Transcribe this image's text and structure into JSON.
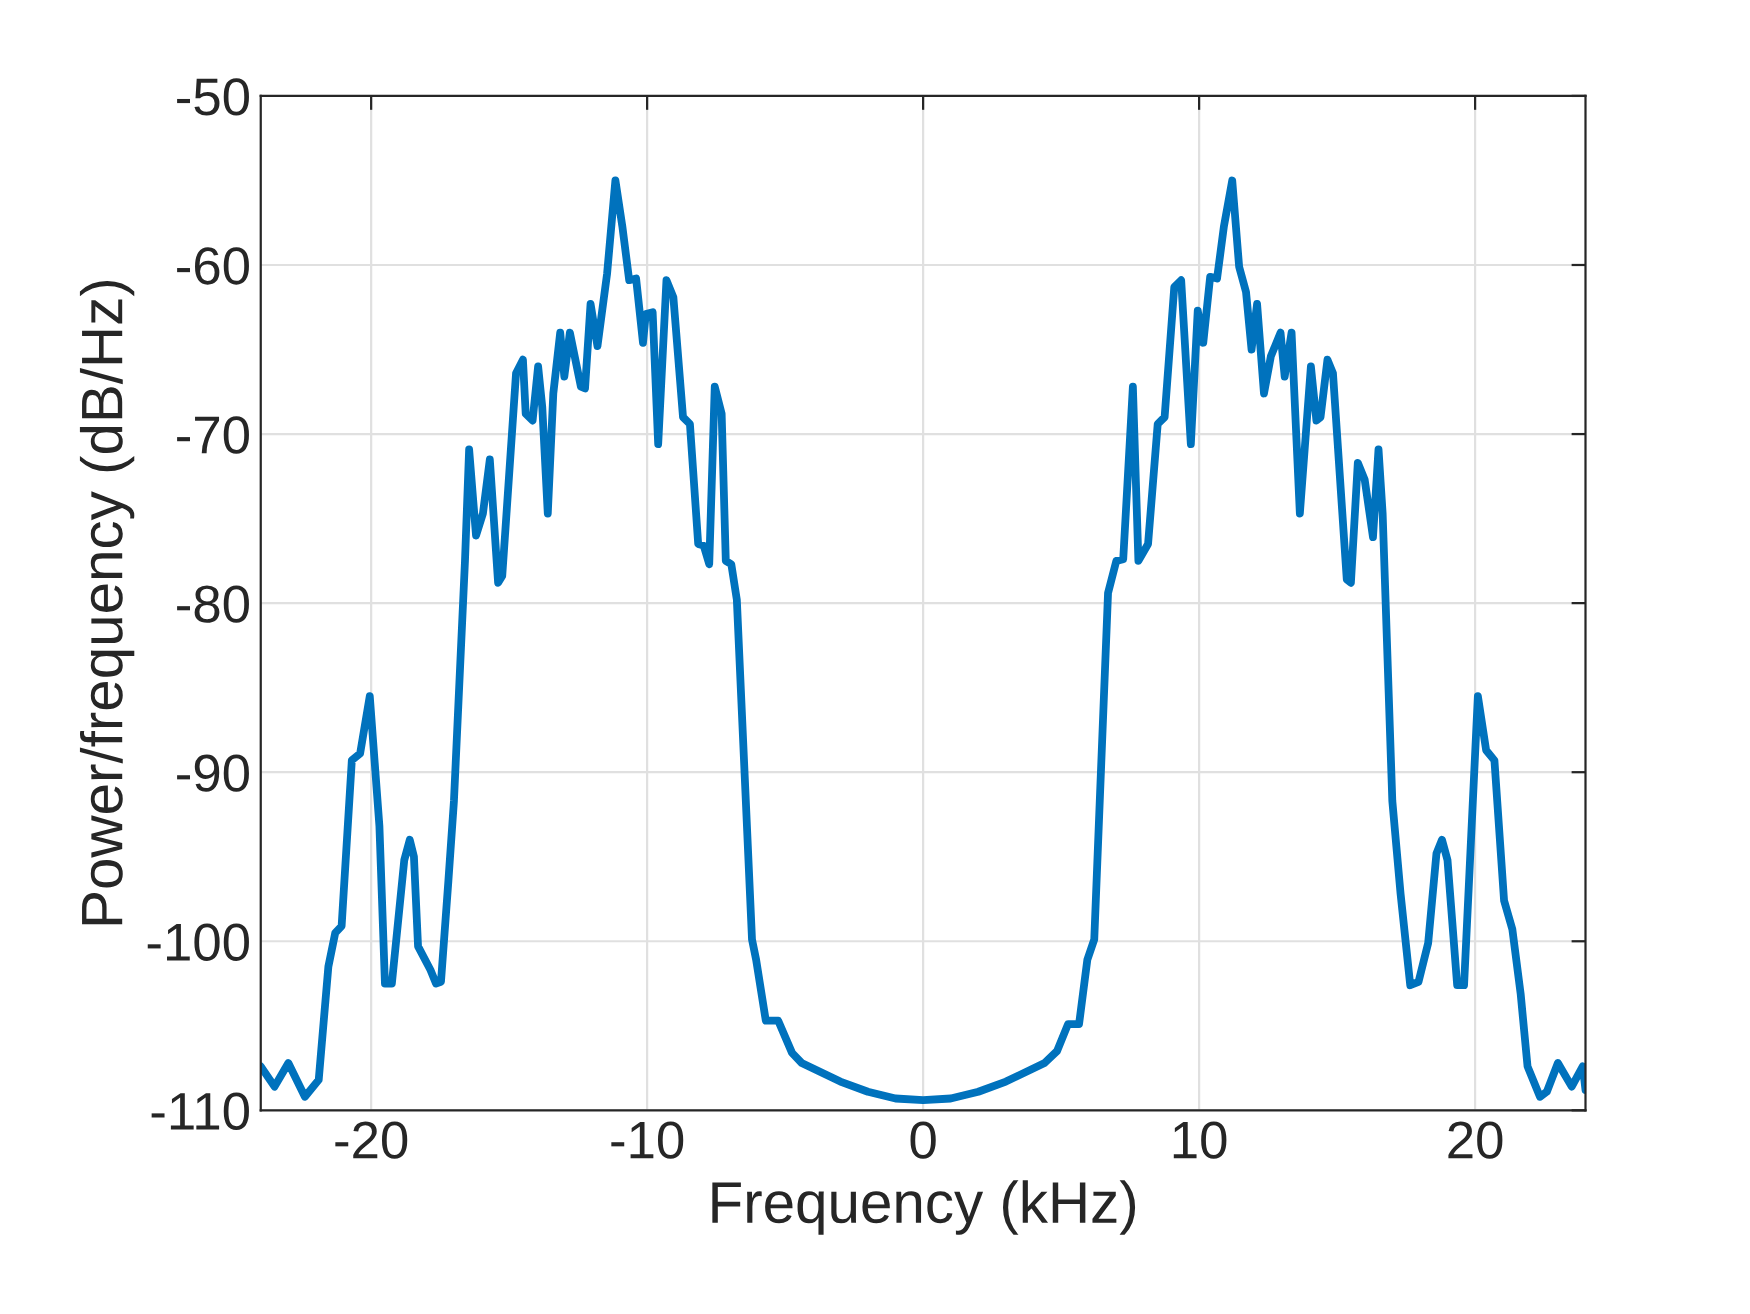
{
  "chart_data": {
    "type": "line",
    "xlabel": "Frequency (kHz)",
    "ylabel": "Power/frequency (dB/Hz)",
    "color": "#0072bd",
    "grid": true,
    "xlim": [
      -24,
      24
    ],
    "ylim": [
      -110,
      -50
    ],
    "xticks": [
      -20,
      -10,
      0,
      10,
      20
    ],
    "yticks": [
      -110,
      -100,
      -90,
      -80,
      -70,
      -60,
      -50
    ],
    "x": [
      -24,
      -23.5,
      -23.0,
      -22.4,
      -21.9,
      -21.55,
      -21.3,
      -21.07,
      -20.7,
      -20.4,
      -20.05,
      -19.7,
      -19.5,
      -19.25,
      -18.8,
      -18.6,
      -18.45,
      -18.3,
      -17.85,
      -17.65,
      -17.47,
      -17.2,
      -17.0,
      -16.6,
      -16.45,
      -16.2,
      -15.95,
      -15.7,
      -15.4,
      -15.25,
      -14.75,
      -14.5,
      -14.4,
      -14.15,
      -13.95,
      -13.8,
      -13.6,
      -13.4,
      -13.15,
      -13.0,
      -12.8,
      -12.4,
      -12.25,
      -12.05,
      -11.8,
      -11.45,
      -11.15,
      -10.9,
      -10.65,
      -10.4,
      -10.15,
      -10.05,
      -9.8,
      -9.6,
      -9.3,
      -9.05,
      -8.7,
      -8.45,
      -8.15,
      -7.95,
      -7.75,
      -7.55,
      -7.3,
      -7.15,
      -6.95,
      -6.75,
      -6.2,
      -6.05,
      -5.7,
      -5.25,
      -4.75,
      -4.4,
      -3,
      -2,
      -1,
      0,
      1,
      2,
      3,
      4.4,
      4.85,
      5.25,
      5.65,
      5.95,
      6.2,
      6.7,
      7.0,
      7.25,
      7.6,
      7.8,
      8.15,
      8.5,
      8.75,
      9.1,
      9.35,
      9.7,
      9.95,
      10.15,
      10.4,
      10.65,
      10.9,
      11.2,
      11.45,
      11.7,
      11.9,
      12.1,
      12.35,
      12.6,
      12.95,
      13.1,
      13.35,
      13.65,
      14.05,
      14.25,
      14.4,
      14.65,
      14.85,
      15.35,
      15.5,
      15.75,
      16.0,
      16.3,
      16.5,
      16.65,
      17.0,
      17.3,
      17.65,
      17.95,
      18.3,
      18.6,
      18.8,
      19.0,
      19.35,
      19.6,
      20.1,
      20.4,
      20.7,
      21.05,
      21.35,
      21.65,
      21.9,
      22.35,
      22.6,
      23.0,
      23.5,
      23.9,
      24.0
    ],
    "values": [
      -107.4,
      -108.6,
      -107.2,
      -109.2,
      -108.2,
      -101.5,
      -99.5,
      -99.1,
      -89.3,
      -88.9,
      -85.5,
      -93.2,
      -102.5,
      -102.5,
      -95.2,
      -94.0,
      -95.0,
      -100.3,
      -101.7,
      -102.5,
      -102.4,
      -96.4,
      -91.7,
      -77.5,
      -70.9,
      -76.0,
      -74.7,
      -71.5,
      -78.8,
      -78.4,
      -66.4,
      -65.6,
      -68.8,
      -69.2,
      -66.0,
      -68.4,
      -74.7,
      -67.6,
      -64.0,
      -66.6,
      -64.0,
      -67.2,
      -67.3,
      -62.3,
      -64.8,
      -60.5,
      -55.0,
      -57.7,
      -60.9,
      -60.8,
      -64.6,
      -62.9,
      -62.8,
      -70.6,
      -60.9,
      -61.9,
      -69.0,
      -69.4,
      -76.5,
      -76.6,
      -77.7,
      -67.2,
      -68.8,
      -77.5,
      -77.7,
      -79.8,
      -99.9,
      -101.1,
      -104.7,
      -104.7,
      -106.6,
      -107.2,
      -108.3,
      -108.9,
      -109.3,
      -109.4,
      -109.3,
      -108.9,
      -108.3,
      -107.2,
      -106.5,
      -104.9,
      -104.9,
      -101.1,
      -99.9,
      -79.4,
      -77.5,
      -77.4,
      -67.2,
      -77.5,
      -76.5,
      -69.4,
      -69.0,
      -61.3,
      -60.9,
      -70.6,
      -62.7,
      -64.6,
      -60.7,
      -60.8,
      -57.7,
      -55.0,
      -60.1,
      -61.6,
      -65.0,
      -62.3,
      -67.6,
      -65.4,
      -64.0,
      -66.6,
      -64.0,
      -74.7,
      -66.0,
      -69.2,
      -69.0,
      -65.6,
      -66.4,
      -78.6,
      -78.8,
      -71.7,
      -72.7,
      -76.1,
      -70.9,
      -74.7,
      -91.7,
      -97.2,
      -102.6,
      -102.4,
      -100.1,
      -94.8,
      -94.0,
      -95.2,
      -102.6,
      -102.6,
      -85.5,
      -88.7,
      -89.3,
      -97.6,
      -99.3,
      -103.1,
      -107.4,
      -109.2,
      -108.9,
      -107.2,
      -108.6,
      -107.4,
      -108.8
    ]
  }
}
